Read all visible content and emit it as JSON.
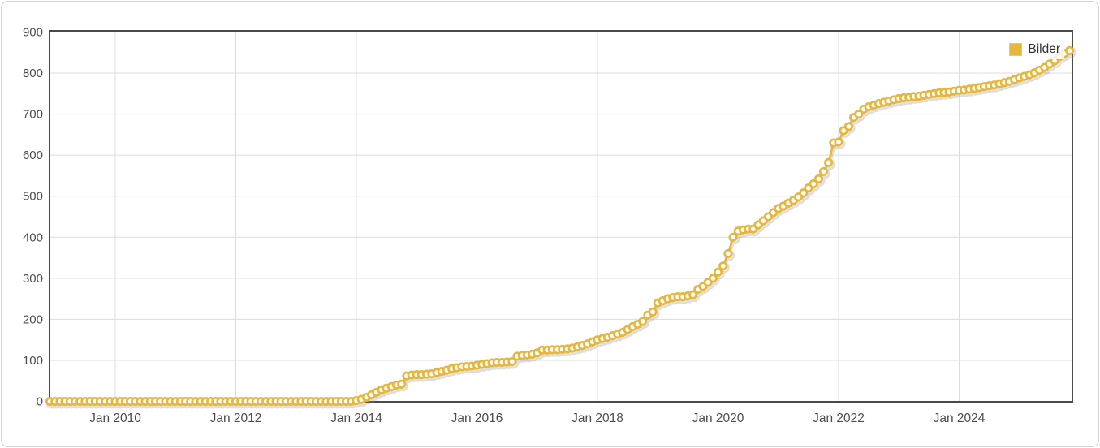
{
  "legend": {
    "label": "Bilder"
  },
  "chart_data": {
    "type": "line",
    "title": "",
    "series": [
      {
        "name": "Bilder"
      }
    ],
    "legend_position": "top-right-inside",
    "marker": "ring-circle",
    "grid": true,
    "colors": {
      "series": "#E6B73C",
      "marker_fill": "#ffffff",
      "axis_border": "#4a4a4a",
      "gridline": "#dcdcdc",
      "tick_label": "#4d4d4d",
      "shadow": "rgba(120,120,120,0.28)"
    },
    "ylim": [
      0,
      900
    ],
    "y_ticks": [
      0,
      100,
      200,
      300,
      400,
      500,
      600,
      700,
      800,
      900
    ],
    "x_ticks": [
      {
        "label": "Jan 2010",
        "year": 2010
      },
      {
        "label": "Jan 2012",
        "year": 2012
      },
      {
        "label": "Jan 2014",
        "year": 2014
      },
      {
        "label": "Jan 2016",
        "year": 2016
      },
      {
        "label": "Jan 2018",
        "year": 2018
      },
      {
        "label": "Jan 2020",
        "year": 2020
      },
      {
        "label": "Jan 2022",
        "year": 2022
      },
      {
        "label": "Jan 2024",
        "year": 2024
      }
    ],
    "start_month": "2008-12",
    "frequency": "monthly",
    "values": [
      0,
      0,
      0,
      0,
      0,
      0,
      0,
      0,
      0,
      0,
      0,
      0,
      0,
      0,
      0,
      0,
      0,
      0,
      0,
      0,
      0,
      0,
      0,
      0,
      0,
      0,
      0,
      0,
      0,
      0,
      0,
      0,
      0,
      0,
      0,
      0,
      0,
      0,
      0,
      0,
      0,
      0,
      0,
      0,
      0,
      0,
      0,
      0,
      0,
      0,
      0,
      0,
      0,
      0,
      0,
      0,
      0,
      0,
      0,
      0,
      0,
      2,
      5,
      10,
      16,
      22,
      28,
      32,
      36,
      40,
      42,
      62,
      64,
      65,
      65,
      66,
      67,
      70,
      73,
      76,
      80,
      82,
      84,
      85,
      86,
      88,
      90,
      92,
      94,
      95,
      95,
      96,
      97,
      110,
      112,
      113,
      115,
      118,
      125,
      125,
      126,
      126,
      127,
      128,
      130,
      133,
      136,
      140,
      145,
      150,
      153,
      156,
      160,
      164,
      168,
      175,
      182,
      188,
      195,
      210,
      218,
      240,
      245,
      250,
      253,
      255,
      255,
      257,
      260,
      273,
      280,
      290,
      300,
      315,
      330,
      360,
      400,
      415,
      418,
      420,
      420,
      430,
      440,
      450,
      460,
      470,
      476,
      483,
      490,
      498,
      508,
      520,
      530,
      542,
      560,
      582,
      630,
      632,
      660,
      670,
      692,
      700,
      712,
      718,
      722,
      726,
      729,
      732,
      735,
      738,
      740,
      741,
      743,
      744,
      746,
      748,
      750,
      752,
      753,
      754,
      756,
      758,
      759,
      761,
      763,
      765,
      767,
      769,
      771,
      774,
      777,
      780,
      784,
      788,
      792,
      796,
      801,
      807,
      814,
      822,
      830,
      840,
      848,
      855
    ]
  }
}
